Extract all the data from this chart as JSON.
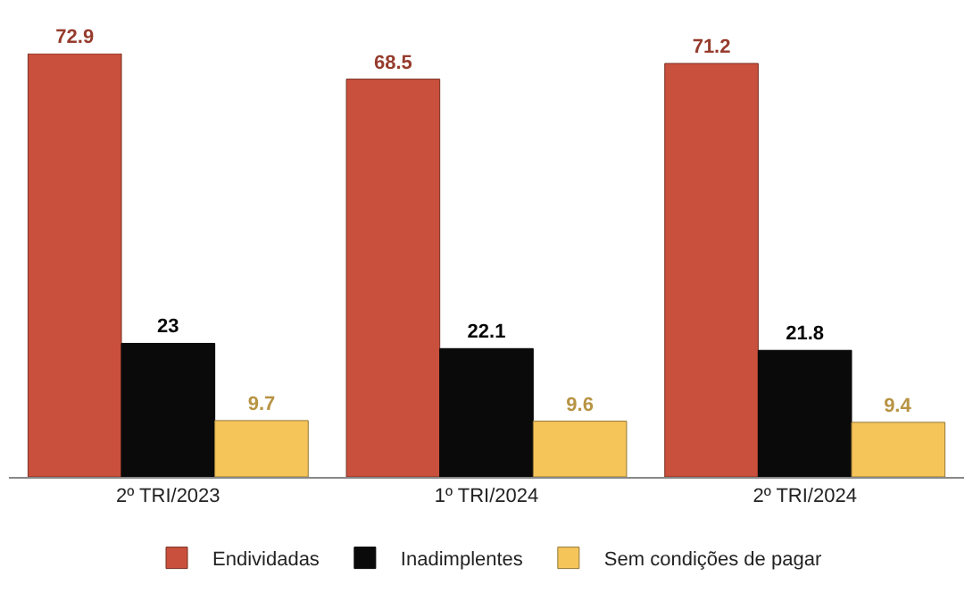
{
  "chart_data": {
    "type": "bar",
    "categories": [
      "2º TRI/2023",
      "1º TRI/2024",
      "2º TRI/2024"
    ],
    "series": [
      {
        "name": "Endividadas",
        "color": "#c9503c",
        "values": [
          72.9,
          68.5,
          71.2
        ]
      },
      {
        "name": "Inadimplentes",
        "color": "#0a0a0a",
        "values": [
          23,
          22.1,
          21.8
        ]
      },
      {
        "name": "Sem condições de pagar",
        "color": "#f5c55a",
        "values": [
          9.7,
          9.6,
          9.4
        ]
      }
    ],
    "data_labels": true,
    "legend": "bottom"
  }
}
